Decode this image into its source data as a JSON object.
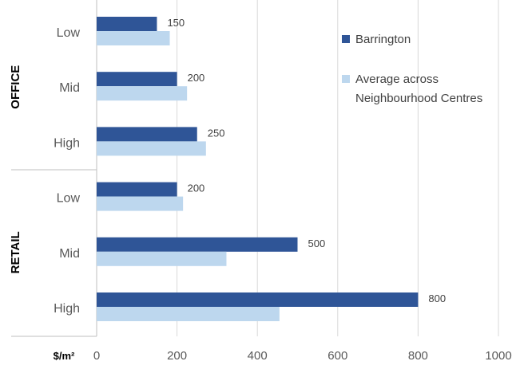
{
  "chart_data": {
    "type": "bar",
    "orientation": "horizontal",
    "groups": [
      {
        "name": "OFFICE",
        "categories": [
          "Low",
          "Mid",
          "High"
        ]
      },
      {
        "name": "RETAIL",
        "categories": [
          "Low",
          "Mid",
          "High"
        ]
      }
    ],
    "series": [
      {
        "name": "Barrington",
        "color": "#2F5597",
        "values": [
          150,
          200,
          250,
          200,
          500,
          800
        ],
        "data_labels": true
      },
      {
        "name": "Average across Neighbourhood Centres",
        "color": "#BDD7EE",
        "values": [
          182,
          225,
          272,
          215,
          323,
          455
        ],
        "data_labels": false
      }
    ],
    "xlim": [
      0,
      1000
    ],
    "xticks": [
      0,
      200,
      400,
      600,
      800,
      1000
    ],
    "xunit": "$/m²",
    "grid": "vertical",
    "legend": {
      "position": "top-right",
      "entries": [
        {
          "lines": [
            "Barrington"
          ]
        },
        {
          "lines": [
            "Average across",
            "Neighbourhood Centres"
          ]
        }
      ]
    }
  }
}
